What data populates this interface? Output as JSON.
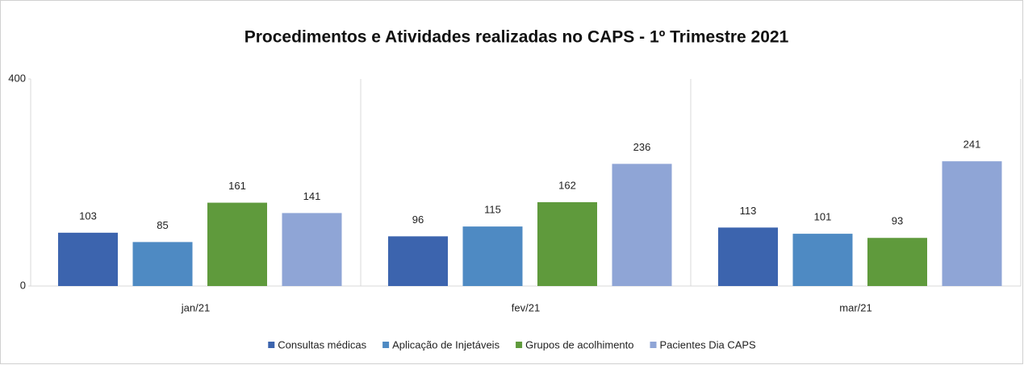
{
  "chart_data": {
    "type": "bar",
    "title": "Procedimentos e Atividades realizadas no CAPS - 1º Trimestre 2021",
    "categories": [
      "jan/21",
      "fev/21",
      "mar/21"
    ],
    "series": [
      {
        "name": "Consultas médicas",
        "color": "#3c64ae",
        "values": [
          103,
          96,
          113
        ]
      },
      {
        "name": "Aplicação de Injetáveis",
        "color": "#4e8ac3",
        "values": [
          85,
          115,
          101
        ]
      },
      {
        "name": "Grupos de acolhimento",
        "color": "#5f9a3c",
        "values": [
          161,
          162,
          93
        ]
      },
      {
        "name": "Pacientes Dia CAPS",
        "color": "#8fa5d6",
        "values": [
          141,
          236,
          241
        ]
      }
    ],
    "ylim": [
      0,
      400
    ],
    "yticks": [
      0,
      400
    ],
    "legend": "bottom"
  }
}
